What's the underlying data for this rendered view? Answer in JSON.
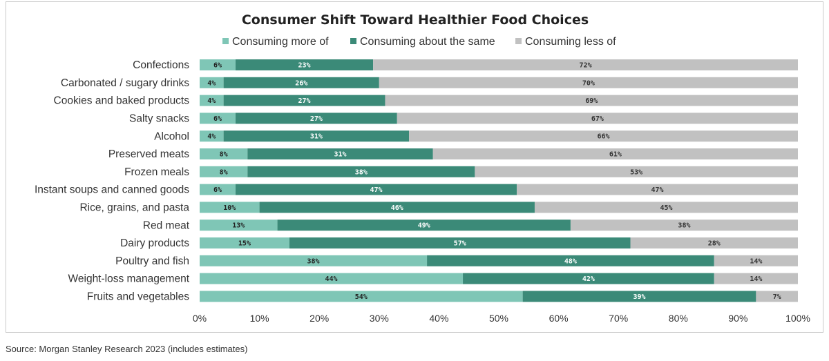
{
  "chart_data": {
    "type": "bar",
    "orientation": "horizontal",
    "stacked": true,
    "title": "Consumer Shift Toward Healthier Food Choices",
    "categories": [
      "Confections",
      "Carbonated / sugary drinks",
      "Cookies and baked products",
      "Salty snacks",
      "Alcohol",
      "Preserved meats",
      "Frozen meals",
      "Instant soups and canned goods",
      "Rice, grains, and pasta",
      "Red meat",
      "Dairy products",
      "Poultry and fish",
      "Weight-loss management",
      "Fruits and vegetables"
    ],
    "series": [
      {
        "name": "Consuming more of",
        "color": "#7fc6b6",
        "label_color": "#222222",
        "values": [
          6,
          4,
          4,
          6,
          4,
          8,
          8,
          6,
          10,
          13,
          15,
          38,
          44,
          54
        ]
      },
      {
        "name": "Consuming about the same",
        "color": "#3b8a78",
        "label_color": "#ffffff",
        "values": [
          23,
          26,
          27,
          27,
          31,
          31,
          38,
          47,
          46,
          49,
          57,
          48,
          42,
          39
        ]
      },
      {
        "name": "Consuming less of",
        "color": "#c1c1c1",
        "label_color": "#333333",
        "values": [
          72,
          70,
          69,
          67,
          66,
          61,
          53,
          47,
          45,
          38,
          28,
          14,
          14,
          7
        ]
      }
    ],
    "xlim": [
      0,
      100
    ],
    "xticks": [
      0,
      10,
      20,
      30,
      40,
      50,
      60,
      70,
      80,
      90,
      100
    ],
    "tick_suffix": "%",
    "label_suffix": "%",
    "legend_position": "top",
    "grid": false
  },
  "source": "Source: Morgan Stanley Research 2023 (includes estimates)"
}
